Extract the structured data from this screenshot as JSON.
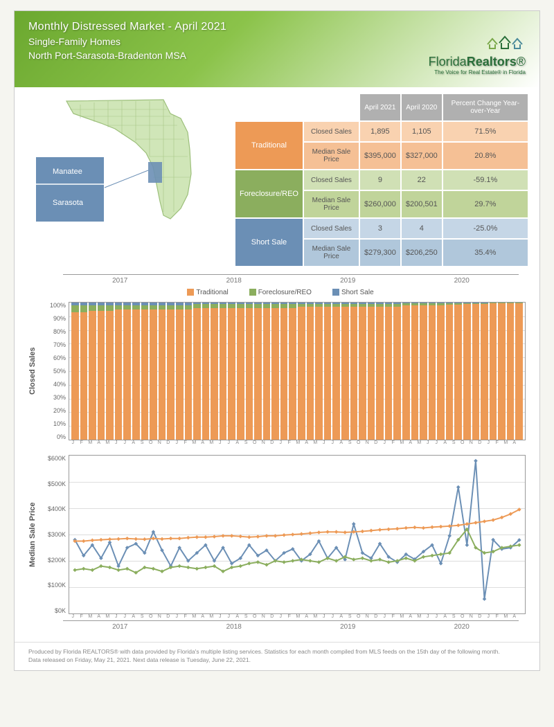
{
  "header": {
    "title": "Monthly Distressed Market - April 2021",
    "subtitle": "Single-Family Homes",
    "region": "North Port-Sarasota-Bradenton MSA",
    "logo_text_a": "Florida",
    "logo_text_b": "Realtors",
    "logo_reg": "®",
    "logo_sub": "The Voice for Real Estate® in Florida"
  },
  "map": {
    "labels": [
      "Manatee",
      "Sarasota"
    ],
    "highlight_color": "#6b8fb5",
    "state_fill": "#d0e6b8",
    "state_stroke": "#9cbf7a"
  },
  "table": {
    "col_headers": [
      "April 2021",
      "April 2020",
      "Percent Change Year-over-Year"
    ],
    "categories": [
      {
        "name": "Traditional",
        "class": "trad",
        "color": "#ed9a56"
      },
      {
        "name": "Foreclosure/REO",
        "class": "fore",
        "color": "#8bae5e"
      },
      {
        "name": "Short Sale",
        "class": "short",
        "color": "#6b8fb5"
      }
    ],
    "metrics": [
      "Closed Sales",
      "Median Sale Price"
    ],
    "data": {
      "Traditional": {
        "Closed Sales": [
          "1,895",
          "1,105",
          "71.5%"
        ],
        "Median Sale Price": [
          "$395,000",
          "$327,000",
          "20.8%"
        ]
      },
      "Foreclosure/REO": {
        "Closed Sales": [
          "9",
          "22",
          "-59.1%"
        ],
        "Median Sale Price": [
          "$260,000",
          "$200,501",
          "29.7%"
        ]
      },
      "Short Sale": {
        "Closed Sales": [
          "3",
          "4",
          "-25.0%"
        ],
        "Median Sale Price": [
          "$279,300",
          "$206,250",
          "35.4%"
        ]
      }
    }
  },
  "legend": {
    "items": [
      {
        "label": "Traditional",
        "color": "#ed9a56"
      },
      {
        "label": "Foreclosure/REO",
        "color": "#8bae5e"
      },
      {
        "label": "Short Sale",
        "color": "#6b8fb5"
      }
    ]
  },
  "years": [
    "2017",
    "2018",
    "2019",
    "2020"
  ],
  "months": [
    "J",
    "F",
    "M",
    "A",
    "M",
    "J",
    "J",
    "A",
    "S",
    "O",
    "N",
    "D",
    "J",
    "F",
    "M",
    "A",
    "M",
    "J",
    "J",
    "A",
    "S",
    "O",
    "N",
    "D",
    "J",
    "F",
    "M",
    "A",
    "M",
    "J",
    "J",
    "A",
    "S",
    "O",
    "N",
    "D",
    "J",
    "F",
    "M",
    "A",
    "M",
    "J",
    "J",
    "A",
    "S",
    "O",
    "N",
    "D",
    "J",
    "F",
    "M",
    "A"
  ],
  "closed_sales_chart": {
    "type": "stacked-bar-100",
    "ylabel": "Closed Sales",
    "yticks": [
      "100%",
      "90%",
      "80%",
      "70%",
      "60%",
      "50%",
      "40%",
      "30%",
      "20%",
      "10%",
      "0%"
    ],
    "colors": {
      "traditional": "#ed9a56",
      "foreclosure": "#8bae5e",
      "short": "#6b8fb5"
    },
    "grid_color": "#dddddd",
    "series_pct": [
      {
        "t": 93,
        "f": 5,
        "s": 2
      },
      {
        "t": 93,
        "f": 5,
        "s": 2
      },
      {
        "t": 94,
        "f": 4,
        "s": 2
      },
      {
        "t": 94,
        "f": 4,
        "s": 2
      },
      {
        "t": 94,
        "f": 4,
        "s": 2
      },
      {
        "t": 95,
        "f": 3,
        "s": 2
      },
      {
        "t": 95,
        "f": 3,
        "s": 2
      },
      {
        "t": 95,
        "f": 3,
        "s": 2
      },
      {
        "t": 95,
        "f": 3,
        "s": 2
      },
      {
        "t": 95,
        "f": 3,
        "s": 2
      },
      {
        "t": 95,
        "f": 3,
        "s": 2
      },
      {
        "t": 95,
        "f": 3,
        "s": 2
      },
      {
        "t": 95,
        "f": 3,
        "s": 2
      },
      {
        "t": 95,
        "f": 3,
        "s": 2
      },
      {
        "t": 96,
        "f": 3,
        "s": 1
      },
      {
        "t": 96,
        "f": 3,
        "s": 1
      },
      {
        "t": 96,
        "f": 3,
        "s": 1
      },
      {
        "t": 96,
        "f": 3,
        "s": 1
      },
      {
        "t": 96,
        "f": 3,
        "s": 1
      },
      {
        "t": 96,
        "f": 3,
        "s": 1
      },
      {
        "t": 96,
        "f": 3,
        "s": 1
      },
      {
        "t": 96,
        "f": 3,
        "s": 1
      },
      {
        "t": 96,
        "f": 3,
        "s": 1
      },
      {
        "t": 96,
        "f": 3,
        "s": 1
      },
      {
        "t": 96,
        "f": 3,
        "s": 1
      },
      {
        "t": 96,
        "f": 3,
        "s": 1
      },
      {
        "t": 97,
        "f": 2,
        "s": 1
      },
      {
        "t": 97,
        "f": 2,
        "s": 1
      },
      {
        "t": 97,
        "f": 2,
        "s": 1
      },
      {
        "t": 97,
        "f": 2,
        "s": 1
      },
      {
        "t": 97,
        "f": 2,
        "s": 1
      },
      {
        "t": 97,
        "f": 2,
        "s": 1
      },
      {
        "t": 97,
        "f": 2,
        "s": 1
      },
      {
        "t": 97,
        "f": 2,
        "s": 1
      },
      {
        "t": 97,
        "f": 2,
        "s": 1
      },
      {
        "t": 97,
        "f": 2,
        "s": 1
      },
      {
        "t": 97,
        "f": 2,
        "s": 1
      },
      {
        "t": 97,
        "f": 2,
        "s": 1
      },
      {
        "t": 98,
        "f": 1.5,
        "s": 0.5
      },
      {
        "t": 98,
        "f": 1.5,
        "s": 0.5
      },
      {
        "t": 98,
        "f": 1.5,
        "s": 0.5
      },
      {
        "t": 98,
        "f": 1.5,
        "s": 0.5
      },
      {
        "t": 98,
        "f": 1.5,
        "s": 0.5
      },
      {
        "t": 98.5,
        "f": 1,
        "s": 0.5
      },
      {
        "t": 98.5,
        "f": 1,
        "s": 0.5
      },
      {
        "t": 99,
        "f": 0.7,
        "s": 0.3
      },
      {
        "t": 99,
        "f": 0.7,
        "s": 0.3
      },
      {
        "t": 99,
        "f": 0.7,
        "s": 0.3
      },
      {
        "t": 99.3,
        "f": 0.5,
        "s": 0.2
      },
      {
        "t": 99.3,
        "f": 0.5,
        "s": 0.2
      },
      {
        "t": 99.4,
        "f": 0.4,
        "s": 0.2
      },
      {
        "t": 99.4,
        "f": 0.4,
        "s": 0.2
      }
    ]
  },
  "median_price_chart": {
    "type": "line",
    "ylabel": "Median Sale Price",
    "yticks": [
      "$600K",
      "$500K",
      "$400K",
      "$300K",
      "$200K",
      "$100K",
      "$0K"
    ],
    "ylim": [
      0,
      600
    ],
    "colors": {
      "traditional": "#ed9a56",
      "foreclosure": "#8bae5e",
      "short": "#6b8fb5"
    },
    "grid_color": "#dddddd",
    "line_width": 2,
    "marker": "diamond",
    "series": {
      "traditional": [
        275,
        275,
        278,
        280,
        282,
        283,
        285,
        283,
        282,
        285,
        283,
        285,
        285,
        288,
        290,
        290,
        292,
        295,
        295,
        293,
        290,
        292,
        295,
        295,
        298,
        300,
        302,
        305,
        308,
        310,
        310,
        308,
        310,
        312,
        315,
        318,
        320,
        322,
        325,
        327,
        325,
        328,
        330,
        332,
        335,
        340,
        345,
        350,
        355,
        365,
        378,
        395
      ],
      "foreclosure": [
        165,
        170,
        165,
        180,
        175,
        165,
        170,
        155,
        175,
        170,
        160,
        175,
        180,
        175,
        170,
        175,
        180,
        160,
        175,
        180,
        190,
        195,
        185,
        200,
        195,
        200,
        205,
        200,
        195,
        210,
        200,
        215,
        205,
        210,
        200,
        205,
        195,
        200,
        210,
        200,
        215,
        220,
        225,
        230,
        280,
        320,
        250,
        230,
        235,
        250,
        255,
        260
      ],
      "short": [
        280,
        220,
        260,
        210,
        270,
        180,
        250,
        265,
        230,
        310,
        240,
        180,
        250,
        200,
        230,
        260,
        200,
        250,
        190,
        210,
        260,
        220,
        240,
        200,
        230,
        245,
        200,
        225,
        275,
        210,
        250,
        205,
        340,
        230,
        210,
        265,
        215,
        195,
        225,
        206,
        235,
        260,
        190,
        295,
        480,
        260,
        580,
        55,
        280,
        245,
        250,
        279
      ]
    }
  },
  "footer": {
    "line1": "Produced by Florida REALTORS® with data provided by Florida's multiple listing services. Statistics for each month compiled from MLS feeds on the 15th day of the following month.",
    "line2": "Data released on Friday, May 21, 2021. Next data release is Tuesday, June 22, 2021."
  }
}
